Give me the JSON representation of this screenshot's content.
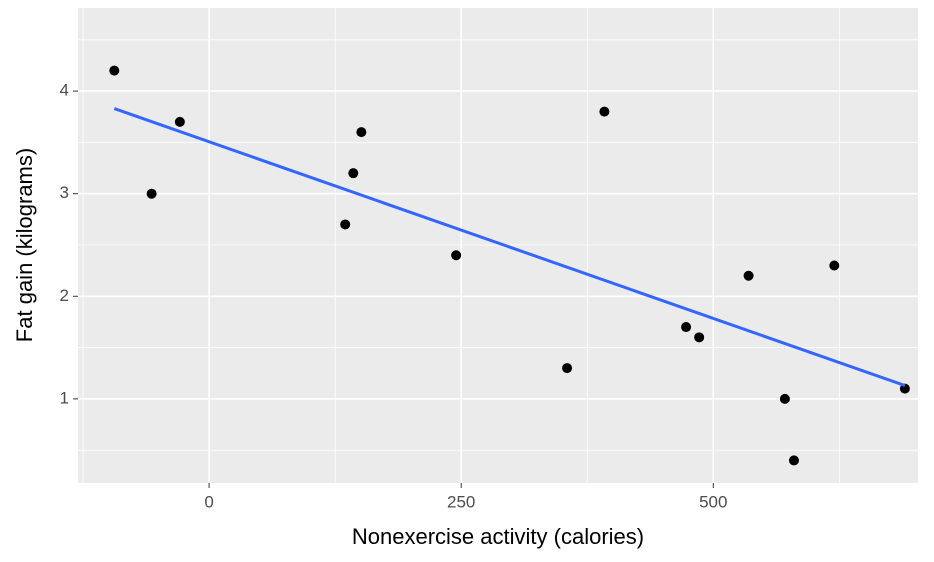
{
  "chart_data": {
    "type": "scatter",
    "x_label": "Nonexercise activity (calories)",
    "y_label": "Fat gain (kilograms)",
    "series": [
      {
        "color": "#000000",
        "x": [
          -94,
          -57,
          -29,
          135,
          143,
          151,
          245,
          355,
          392,
          473,
          486,
          535,
          571,
          580,
          620,
          690
        ],
        "values": [
          4.2,
          3.0,
          3.7,
          2.7,
          3.2,
          3.6,
          2.4,
          1.3,
          3.8,
          1.7,
          1.6,
          2.2,
          1.0,
          0.4,
          2.3,
          1.1
        ]
      }
    ],
    "fit": {
      "color": "#3366ff",
      "x": [
        -94,
        690
      ],
      "values": [
        3.83,
        1.13
      ]
    },
    "xlim": [
      -130,
      703
    ],
    "ylim": [
      0.18,
      4.81
    ],
    "xticks": [
      0,
      250,
      500
    ],
    "yticks": [
      1,
      2,
      3,
      4
    ],
    "grid": true
  }
}
